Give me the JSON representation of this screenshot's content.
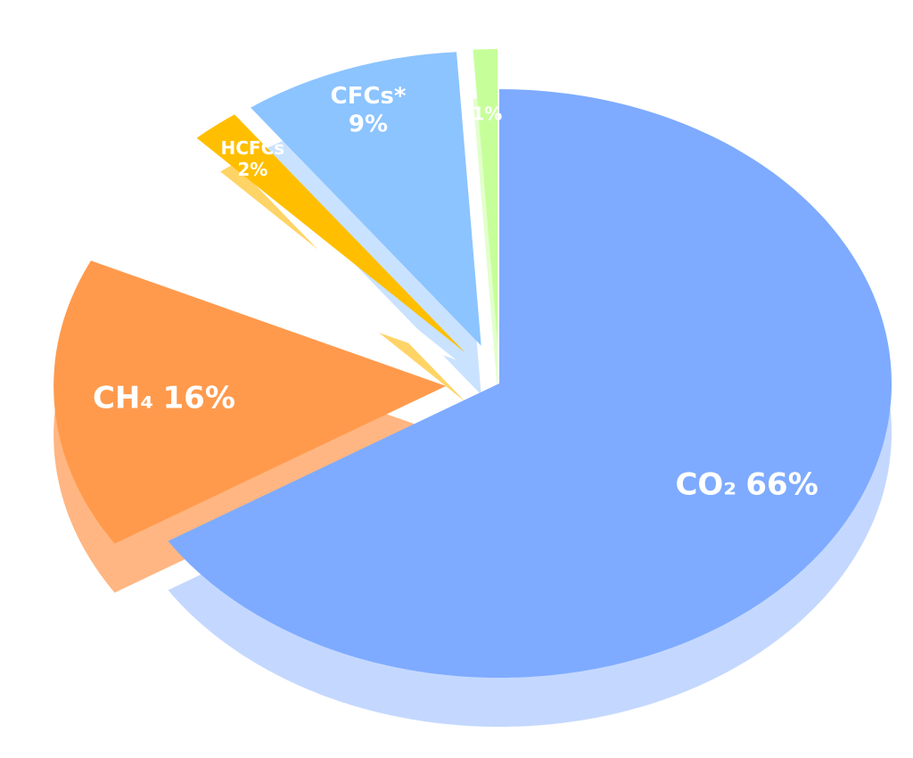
{
  "chart_data": {
    "type": "pie",
    "categories": [
      "CO₂",
      "CH₄",
      null,
      "HCFCs",
      "CFCs*",
      null
    ],
    "values": [
      66,
      16,
      6,
      2,
      9,
      1
    ],
    "value_labels": [
      "66%",
      "16%",
      null,
      "2%",
      "9%",
      "1%"
    ],
    "colors": [
      "#7eabff",
      "#ff9a4d",
      "#ffffff",
      "#ffbf00",
      "#8cc4ff",
      "#c6ff9a"
    ],
    "side_colors": [
      "#c4d8ff",
      "#ffb682",
      "#ffffff",
      "#ffd466",
      "#c9e2ff",
      "#e2ffcc"
    ]
  }
}
